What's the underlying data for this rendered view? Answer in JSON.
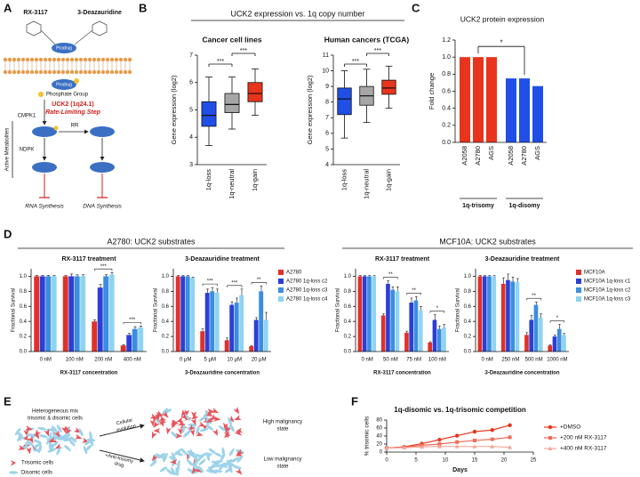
{
  "panel_labels": [
    "A",
    "B",
    "C",
    "D",
    "E",
    "F"
  ],
  "diagram_a": {
    "drugs": [
      "RX-3117",
      "3-Deazauridine"
    ],
    "prodrug": "Prodrug",
    "phosphate": "Phosphate Group",
    "enzyme": "UCK2 (1q24.1)",
    "step": "Rate-Limiting Step",
    "kinase1": "CMPK1",
    "reductase": "RR",
    "kinase2": "NDPK",
    "metabolites": "Active Metabolites",
    "rna": "RNA Synthesis",
    "dna": "DNA Synthesis"
  },
  "diagram_e": {
    "mix": [
      "Heterogeneous mix",
      "trisomic & disomic cells"
    ],
    "evolution": [
      "Cellular",
      "evolution"
    ],
    "drug": [
      "+Anti-trisomy",
      "drug"
    ],
    "high": [
      "High malignancy",
      "state"
    ],
    "low": [
      "Low malignancy",
      "state"
    ],
    "legend": [
      "Trisomic cells",
      "Disomic cells"
    ]
  },
  "chart_data": [
    {
      "type": "box",
      "group_title": "UCK2 expression vs. 1q copy number",
      "title": "Cancer cell lines",
      "y_label": "Gene expression (log2)",
      "categories": [
        "1q-loss",
        "1q-neutral",
        "1q-gain"
      ],
      "colors": [
        "#1f4fe6",
        "#a6a6a6",
        "#e8341c"
      ],
      "boxes": [
        {
          "min": 3.7,
          "q1": 4.4,
          "median": 4.8,
          "q3": 5.3,
          "max": 6.2
        },
        {
          "min": 4.3,
          "q1": 4.9,
          "median": 5.2,
          "q3": 5.6,
          "max": 6.2
        },
        {
          "min": 4.8,
          "q1": 5.3,
          "median": 5.6,
          "q3": 6.0,
          "max": 6.5
        }
      ],
      "ylim": [
        3,
        7
      ],
      "yticks": [
        3,
        4,
        5,
        6,
        7
      ],
      "significance": [
        "***",
        "***"
      ]
    },
    {
      "type": "box",
      "title": "Human cancers (TCGA)",
      "y_label": "Gene expression (log2)",
      "categories": [
        "1q-loss",
        "1q-neutral",
        "1q-gain"
      ],
      "colors": [
        "#1f4fe6",
        "#a6a6a6",
        "#e8341c"
      ],
      "boxes": [
        {
          "min": 5.7,
          "q1": 7.2,
          "median": 8.2,
          "q3": 8.9,
          "max": 10.0
        },
        {
          "min": 6.7,
          "q1": 7.8,
          "median": 8.4,
          "q3": 9.0,
          "max": 10.1
        },
        {
          "min": 7.6,
          "q1": 8.5,
          "median": 8.9,
          "q3": 9.4,
          "max": 10.3
        }
      ],
      "ylim": [
        4,
        11
      ],
      "yticks": [
        4,
        5,
        6,
        7,
        8,
        9,
        10,
        11
      ],
      "significance": [
        "***",
        "***"
      ]
    },
    {
      "type": "bar",
      "title": "UCK2 protein expression",
      "y_label": "Fold change",
      "groups": [
        {
          "name": "1q-trisomy",
          "color": "#e8341c",
          "categories": [
            "A2058",
            "A2780",
            "AGS"
          ],
          "values": [
            1,
            1,
            1
          ]
        },
        {
          "name": "1q-disomy",
          "color": "#1f4fe6",
          "categories": [
            "A2058",
            "A2780",
            "AGS"
          ],
          "values": [
            0.75,
            0.75,
            0.66
          ]
        }
      ],
      "ylim": [
        0,
        1.2
      ],
      "yticks": [
        {
          "value": 0,
          "label": "0.0"
        },
        0.2,
        0.4,
        0.6,
        0.8,
        {
          "value": 1,
          "label": "1.0"
        },
        1.2
      ],
      "significance": "*"
    },
    {
      "type": "grouped-bar",
      "group_title": "A2780: UCK2 substrates",
      "title": "RX-3117 treatment",
      "x_label": "RX-3117 concentration",
      "y_label": "Fractional Survival",
      "categories": [
        "0 nM",
        "100 nM",
        "200 nM",
        "400 nM"
      ],
      "series": [
        {
          "color": "#e0302a",
          "values": [
            1,
            1,
            0.4,
            0.08
          ],
          "errors": [
            0.01,
            0.01,
            0.02,
            0.01
          ]
        },
        {
          "color": "#2b3fd6",
          "values": [
            1,
            1,
            0.85,
            0.22
          ],
          "errors": [
            0.01,
            0.03,
            0.04,
            0.02
          ]
        },
        {
          "color": "#3a8de0",
          "values": [
            1,
            1,
            1.0,
            0.3
          ],
          "errors": [
            0.01,
            0.02,
            0.02,
            0.03
          ]
        },
        {
          "color": "#8fd3f2",
          "values": [
            1,
            1,
            1.02,
            0.32
          ],
          "errors": [
            0.01,
            0.02,
            0.03,
            0.02
          ]
        }
      ],
      "ylim": [
        0,
        1.1
      ],
      "yticks": [
        {
          "value": 0,
          "label": "0.0"
        },
        0.2,
        0.4,
        0.6,
        0.8,
        {
          "value": 1,
          "label": "1.0"
        }
      ],
      "significance": [
        null,
        null,
        "***",
        "***"
      ]
    },
    {
      "type": "grouped-bar",
      "title": "3-Deazauridine treatment",
      "x_label": "3-Deazauridine concentration",
      "y_label": "Fractional Survival",
      "categories": [
        "0 μM",
        "5 μM",
        "10 μM",
        "20 μM"
      ],
      "series": [
        {
          "name": "A2780",
          "color": "#e0302a",
          "values": [
            1,
            0.27,
            0.15,
            0.07
          ],
          "errors": [
            0.01,
            0.03,
            0.03,
            0.01
          ]
        },
        {
          "name": "A2780 1q-loss c2",
          "color": "#2b3fd6",
          "values": [
            1,
            0.78,
            0.62,
            0.42
          ],
          "errors": [
            0.01,
            0.05,
            0.04,
            0.03
          ]
        },
        {
          "name": "A2780 1q-loss c3",
          "color": "#3a8de0",
          "values": [
            1,
            0.8,
            0.65,
            0.8
          ],
          "errors": [
            0.01,
            0.05,
            0.06,
            0.07
          ]
        },
        {
          "name": "A2780 1q-loss c4",
          "color": "#8fd3f2",
          "values": [
            0.98,
            0.78,
            0.75,
            0.42
          ],
          "errors": [
            0.01,
            0.05,
            0.08,
            0.1
          ]
        }
      ],
      "ylim": [
        0,
        1.1
      ],
      "yticks": [
        {
          "value": 0,
          "label": "0.0"
        },
        0.2,
        0.4,
        0.6,
        0.8,
        {
          "value": 1,
          "label": "1.0"
        }
      ],
      "significance": [
        null,
        "***",
        "***",
        "**"
      ]
    },
    {
      "type": "grouped-bar",
      "group_title": "MCF10A: UCK2 substrates",
      "title": "RX-3117 treatment",
      "x_label": "RX-3117 concentration",
      "y_label": "Fractional Survival",
      "categories": [
        "0 nM",
        "50 nM",
        "75 nM",
        "100 nM"
      ],
      "series": [
        {
          "color": "#e0302a",
          "values": [
            1,
            0.48,
            0.25,
            0.12
          ],
          "errors": [
            0.01,
            0.02,
            0.02,
            0.01
          ]
        },
        {
          "color": "#2b3fd6",
          "values": [
            1,
            0.9,
            0.65,
            0.42
          ],
          "errors": [
            0.01,
            0.04,
            0.06,
            0.07
          ]
        },
        {
          "color": "#3a8de0",
          "values": [
            1,
            0.82,
            0.68,
            0.3
          ],
          "errors": [
            0.01,
            0.04,
            0.05,
            0.04
          ]
        },
        {
          "color": "#8fd3f2",
          "values": [
            1,
            0.8,
            0.55,
            0.32
          ],
          "errors": [
            0.01,
            0.06,
            0.05,
            0.04
          ]
        }
      ],
      "ylim": [
        0,
        1.1
      ],
      "yticks": [
        {
          "value": 0,
          "label": "0.0"
        },
        0.2,
        0.4,
        0.6,
        0.8,
        {
          "value": 1,
          "label": "1.0"
        }
      ],
      "significance": [
        null,
        "**",
        "**",
        "*"
      ]
    },
    {
      "type": "grouped-bar",
      "title": "3-Deazauridine treatment",
      "x_label": "3-Deazauridine concentration",
      "y_label": "Fractional Survival",
      "categories": [
        "0 nM",
        "250 nM",
        "500 nM",
        "1000 nM"
      ],
      "series": [
        {
          "name": "MCF10A",
          "color": "#e0302a",
          "values": [
            1,
            0.9,
            0.22,
            0.08
          ],
          "errors": [
            0.01,
            0.08,
            0.03,
            0.01
          ]
        },
        {
          "name": "MCF10A 1q-loss c1",
          "color": "#2b3fd6",
          "values": [
            1,
            0.95,
            0.42,
            0.2
          ],
          "errors": [
            0.01,
            0.08,
            0.06,
            0.02
          ]
        },
        {
          "name": "MCF10A 1q-loss c2",
          "color": "#3a8de0",
          "values": [
            1,
            0.93,
            0.62,
            0.3
          ],
          "errors": [
            0.01,
            0.06,
            0.04,
            0.06
          ]
        },
        {
          "name": "MCF10A 1q-loss c3",
          "color": "#8fd3f2",
          "values": [
            1,
            0.92,
            0.45,
            0.22
          ],
          "errors": [
            0.01,
            0.05,
            0.05,
            0.02
          ]
        }
      ],
      "ylim": [
        0,
        1.1
      ],
      "yticks": [
        {
          "value": 0,
          "label": "0.0"
        },
        0.2,
        0.4,
        0.6,
        0.8,
        {
          "value": 1,
          "label": "1.0"
        }
      ],
      "significance": [
        null,
        null,
        "**",
        "*"
      ]
    },
    {
      "type": "line",
      "title": "1q-disomic vs. 1q-trisomic competition",
      "x_label": "Days",
      "y_label": "% trisomic cells",
      "x": [
        0,
        3,
        6,
        9,
        12,
        15,
        18,
        21
      ],
      "series": [
        {
          "name": "+DMSO",
          "color": "#e8341c",
          "marker": "circle",
          "values": [
            10,
            13,
            21,
            31,
            41,
            51,
            55,
            67
          ]
        },
        {
          "name": "+200 nM RX-3117",
          "color": "#ee6c5a",
          "marker": "square",
          "values": [
            10,
            12,
            17,
            20,
            25,
            29,
            32,
            37
          ]
        },
        {
          "name": "+400 nM RX-3117",
          "color": "#f4a99c",
          "marker": "triangle",
          "values": [
            10,
            11,
            13,
            14,
            14,
            14,
            14,
            12
          ]
        }
      ],
      "xlim": [
        0,
        25
      ],
      "xticks": [
        0,
        5,
        10,
        15,
        20,
        25
      ],
      "ylim": [
        0,
        80
      ],
      "yticks": [
        0,
        20,
        40,
        60,
        80
      ]
    }
  ]
}
